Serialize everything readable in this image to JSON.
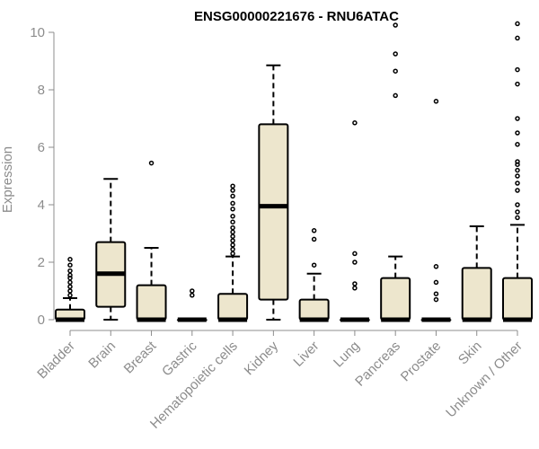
{
  "chart_data": {
    "type": "boxplot",
    "title": "ENSG00000221676 - RNU6ATAC",
    "ylabel": "Expression",
    "xlabel": "",
    "ylim": [
      0,
      10.5
    ],
    "yticks": [
      0,
      2,
      4,
      6,
      8,
      10
    ],
    "grid": false,
    "colors": {
      "box_fill": "#ede6cd",
      "stroke": "#000000",
      "axis_text": "#8c8c8c"
    },
    "categories": [
      "Bladder",
      "Brain",
      "Breast",
      "Gastric",
      "Hematopoietic cells",
      "Kidney",
      "Liver",
      "Lung",
      "Pancreas",
      "Prostate",
      "Skin",
      "Unknown / Other"
    ],
    "boxes": [
      {
        "q1": 0,
        "median": 0,
        "q3": 0.35,
        "whisker_low": 0,
        "whisker_high": 0.75,
        "outliers": [
          0.85,
          1.0,
          1.15,
          1.3,
          1.45,
          1.55,
          1.7,
          1.9,
          2.1
        ]
      },
      {
        "q1": 0.45,
        "median": 1.6,
        "q3": 2.7,
        "whisker_low": 0,
        "whisker_high": 4.9,
        "outliers": []
      },
      {
        "q1": 0,
        "median": 0,
        "q3": 1.2,
        "whisker_low": 0,
        "whisker_high": 2.5,
        "outliers": [
          5.45
        ]
      },
      {
        "q1": 0,
        "median": 0,
        "q3": 0,
        "whisker_low": 0,
        "whisker_high": 0,
        "outliers": [
          0.85,
          1.0
        ]
      },
      {
        "q1": 0,
        "median": 0,
        "q3": 0.9,
        "whisker_low": 0,
        "whisker_high": 2.2,
        "outliers": [
          2.3,
          2.45,
          2.6,
          2.75,
          2.9,
          3.05,
          3.2,
          3.4,
          3.6,
          3.85,
          4.05,
          4.3,
          4.5,
          4.65
        ]
      },
      {
        "q1": 0.7,
        "median": 3.95,
        "q3": 6.8,
        "whisker_low": 0,
        "whisker_high": 8.85,
        "outliers": []
      },
      {
        "q1": 0,
        "median": 0,
        "q3": 0.7,
        "whisker_low": 0,
        "whisker_high": 1.6,
        "outliers": [
          1.9,
          2.8,
          3.1
        ]
      },
      {
        "q1": 0,
        "median": 0,
        "q3": 0,
        "whisker_low": 0,
        "whisker_high": 0,
        "outliers": [
          1.1,
          1.25,
          2.0,
          2.3,
          6.85
        ]
      },
      {
        "q1": 0,
        "median": 0,
        "q3": 1.45,
        "whisker_low": 0,
        "whisker_high": 2.2,
        "outliers": [
          7.8,
          8.65,
          9.25,
          10.25
        ]
      },
      {
        "q1": 0,
        "median": 0,
        "q3": 0,
        "whisker_low": 0,
        "whisker_high": 0,
        "outliers": [
          0.7,
          0.9,
          1.3,
          1.85,
          7.6
        ]
      },
      {
        "q1": 0,
        "median": 0,
        "q3": 1.8,
        "whisker_low": 0,
        "whisker_high": 3.25,
        "outliers": []
      },
      {
        "q1": 0,
        "median": 0,
        "q3": 1.45,
        "whisker_low": 0,
        "whisker_high": 3.3,
        "outliers": [
          3.55,
          3.75,
          4.0,
          4.5,
          4.75,
          5.0,
          5.2,
          5.4,
          5.5,
          6.1,
          6.5,
          7.0,
          8.2,
          8.7,
          9.8,
          10.3
        ]
      }
    ]
  }
}
